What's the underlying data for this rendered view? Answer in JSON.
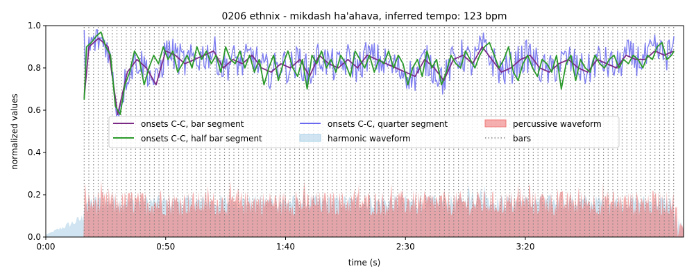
{
  "chart_data": {
    "type": "line",
    "title": "0206 ethnix - mikdash ha'ahava, inferred tempo: 123 bpm",
    "xlabel": "time (s)",
    "ylabel": "normalized values",
    "xlim": [
      0,
      266
    ],
    "ylim": [
      0,
      1.0
    ],
    "x_ticks": [
      {
        "value": 0,
        "label": "0:00"
      },
      {
        "value": 50,
        "label": "0:50"
      },
      {
        "value": 100,
        "label": "1:40"
      },
      {
        "value": 150,
        "label": "2:30"
      },
      {
        "value": 200,
        "label": "3:20"
      }
    ],
    "y_ticks": [
      {
        "value": 0.0,
        "label": "0.0"
      },
      {
        "value": 0.2,
        "label": "0.2"
      },
      {
        "value": 0.4,
        "label": "0.4"
      },
      {
        "value": 0.6,
        "label": "0.6"
      },
      {
        "value": 0.8,
        "label": "0.8"
      },
      {
        "value": 1.0,
        "label": "1.0"
      }
    ],
    "grid": false,
    "legend_position": "center",
    "legend": {
      "bar": "onsets C-C, bar segment",
      "half": "onsets C-C, half bar segment",
      "quarter": "onsets C-C, quarter segment",
      "harmonic": "harmonic waveform",
      "percussive": "percussive waveform",
      "bars": "bars"
    },
    "colors": {
      "bar": "#7b2a86",
      "half": "#2a9a2a",
      "quarter": "#6a6af0",
      "harmonic": "#a9cfe6",
      "percussive": "#f07a7a",
      "bars": "#808080"
    },
    "tempo_bpm": 123,
    "music_start": 16.0,
    "music_end": 262.0,
    "series": [
      {
        "key": "bar",
        "name": "onsets C-C, bar segment",
        "x": [
          16,
          18,
          22,
          26,
          30,
          34,
          38,
          42,
          46,
          50,
          54,
          58,
          62,
          66,
          70,
          74,
          78,
          82,
          86,
          90,
          94,
          98,
          102,
          106,
          110,
          114,
          118,
          122,
          126,
          130,
          134,
          138,
          142,
          146,
          150,
          154,
          158,
          162,
          166,
          170,
          174,
          178,
          182,
          186,
          190,
          194,
          198,
          202,
          206,
          210,
          214,
          218,
          222,
          226,
          230,
          234,
          238,
          242,
          246,
          250,
          254,
          258,
          262
        ],
        "values": [
          0.66,
          0.9,
          0.94,
          0.9,
          0.58,
          0.78,
          0.84,
          0.8,
          0.72,
          0.88,
          0.86,
          0.82,
          0.84,
          0.86,
          0.88,
          0.8,
          0.84,
          0.82,
          0.86,
          0.8,
          0.78,
          0.82,
          0.8,
          0.84,
          0.76,
          0.86,
          0.82,
          0.8,
          0.84,
          0.8,
          0.86,
          0.84,
          0.82,
          0.8,
          0.78,
          0.76,
          0.84,
          0.8,
          0.74,
          0.84,
          0.86,
          0.82,
          0.9,
          0.84,
          0.78,
          0.8,
          0.84,
          0.86,
          0.8,
          0.78,
          0.82,
          0.84,
          0.8,
          0.78,
          0.84,
          0.82,
          0.8,
          0.86,
          0.84,
          0.84,
          0.88,
          0.86,
          0.88
        ]
      },
      {
        "key": "half",
        "name": "onsets C-C, half bar segment",
        "x": [
          16,
          17,
          19,
          21,
          23,
          25,
          27,
          29,
          31,
          33,
          35,
          37,
          39,
          41,
          43,
          45,
          47,
          49,
          51,
          53,
          55,
          57,
          59,
          61,
          63,
          65,
          67,
          69,
          71,
          73,
          75,
          77,
          79,
          81,
          83,
          85,
          87,
          89,
          91,
          93,
          95,
          97,
          99,
          101,
          103,
          105,
          107,
          109,
          111,
          113,
          115,
          117,
          119,
          121,
          123,
          125,
          127,
          129,
          131,
          133,
          135,
          137,
          139,
          141,
          143,
          145,
          147,
          149,
          151,
          153,
          155,
          157,
          159,
          161,
          163,
          165,
          167,
          169,
          171,
          173,
          175,
          177,
          179,
          181,
          183,
          185,
          187,
          189,
          191,
          193,
          195,
          197,
          199,
          201,
          203,
          205,
          207,
          209,
          211,
          213,
          215,
          217,
          219,
          221,
          223,
          225,
          227,
          229,
          231,
          233,
          235,
          237,
          239,
          241,
          243,
          245,
          247,
          249,
          251,
          253,
          255,
          257,
          259,
          261,
          262
        ],
        "values": [
          0.65,
          0.9,
          0.92,
          0.95,
          0.97,
          0.9,
          0.86,
          0.62,
          0.58,
          0.72,
          0.78,
          0.88,
          0.84,
          0.72,
          0.8,
          0.86,
          0.82,
          0.9,
          0.84,
          0.88,
          0.78,
          0.82,
          0.86,
          0.8,
          0.9,
          0.84,
          0.88,
          0.82,
          0.86,
          0.78,
          0.9,
          0.84,
          0.82,
          0.88,
          0.8,
          0.86,
          0.78,
          0.84,
          0.72,
          0.8,
          0.86,
          0.74,
          0.82,
          0.88,
          0.8,
          0.76,
          0.84,
          0.7,
          0.86,
          0.82,
          0.88,
          0.8,
          0.84,
          0.78,
          0.86,
          0.82,
          0.76,
          0.88,
          0.84,
          0.8,
          0.86,
          0.78,
          0.84,
          0.82,
          0.88,
          0.8,
          0.86,
          0.82,
          0.72,
          0.8,
          0.84,
          0.76,
          0.88,
          0.8,
          0.84,
          0.72,
          0.78,
          0.86,
          0.82,
          0.8,
          0.88,
          0.84,
          0.8,
          0.86,
          0.9,
          0.92,
          0.86,
          0.8,
          0.84,
          0.9,
          0.78,
          0.74,
          0.82,
          0.86,
          0.8,
          0.76,
          0.84,
          0.82,
          0.78,
          0.86,
          0.7,
          0.82,
          0.86,
          0.74,
          0.84,
          0.8,
          0.78,
          0.86,
          0.82,
          0.8,
          0.84,
          0.86,
          0.8,
          0.84,
          0.82,
          0.86,
          0.84,
          0.8,
          0.86,
          0.84,
          0.9,
          0.92,
          0.84,
          0.86,
          0.88
        ]
      }
    ]
  }
}
